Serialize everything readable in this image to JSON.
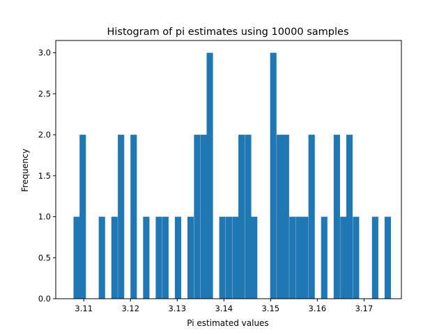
{
  "chart_data": {
    "type": "bar",
    "title": "Histogram of pi estimates using 10000 samples",
    "xlabel": "Pi estimated values",
    "ylabel": "Frequency",
    "xlim": [
      3.104,
      3.178
    ],
    "ylim": [
      0.0,
      3.15
    ],
    "bin_width": 0.00136,
    "bar_color": "#1f77b4",
    "grid": false,
    "x_ticks": [
      3.11,
      3.12,
      3.13,
      3.14,
      3.15,
      3.16,
      3.17
    ],
    "x_tick_labels": [
      "3.11",
      "3.12",
      "3.13",
      "3.14",
      "3.15",
      "3.16",
      "3.17"
    ],
    "y_ticks": [
      0.0,
      0.5,
      1.0,
      1.5,
      2.0,
      2.5,
      3.0
    ],
    "y_tick_labels": [
      "0.0",
      "0.5",
      "1.0",
      "1.5",
      "2.0",
      "2.5",
      "3.0"
    ],
    "bins": [
      {
        "x": 3.1078,
        "count": 1
      },
      {
        "x": 3.1091,
        "count": 2
      },
      {
        "x": 3.1132,
        "count": 1
      },
      {
        "x": 3.1159,
        "count": 1
      },
      {
        "x": 3.1173,
        "count": 2
      },
      {
        "x": 3.12,
        "count": 2
      },
      {
        "x": 3.1227,
        "count": 1
      },
      {
        "x": 3.1254,
        "count": 1
      },
      {
        "x": 3.1268,
        "count": 1
      },
      {
        "x": 3.1295,
        "count": 1
      },
      {
        "x": 3.1322,
        "count": 1
      },
      {
        "x": 3.1336,
        "count": 2
      },
      {
        "x": 3.135,
        "count": 2
      },
      {
        "x": 3.1363,
        "count": 3
      },
      {
        "x": 3.139,
        "count": 1
      },
      {
        "x": 3.1404,
        "count": 1
      },
      {
        "x": 3.1418,
        "count": 1
      },
      {
        "x": 3.1431,
        "count": 2
      },
      {
        "x": 3.1445,
        "count": 2
      },
      {
        "x": 3.1458,
        "count": 1
      },
      {
        "x": 3.1499,
        "count": 3
      },
      {
        "x": 3.1513,
        "count": 2
      },
      {
        "x": 3.1526,
        "count": 2
      },
      {
        "x": 3.154,
        "count": 1
      },
      {
        "x": 3.1554,
        "count": 1
      },
      {
        "x": 3.1567,
        "count": 1
      },
      {
        "x": 3.1581,
        "count": 2
      },
      {
        "x": 3.1608,
        "count": 1
      },
      {
        "x": 3.1635,
        "count": 2
      },
      {
        "x": 3.1649,
        "count": 1
      },
      {
        "x": 3.1662,
        "count": 2
      },
      {
        "x": 3.1676,
        "count": 1
      },
      {
        "x": 3.1717,
        "count": 1
      },
      {
        "x": 3.1744,
        "count": 1
      }
    ]
  }
}
